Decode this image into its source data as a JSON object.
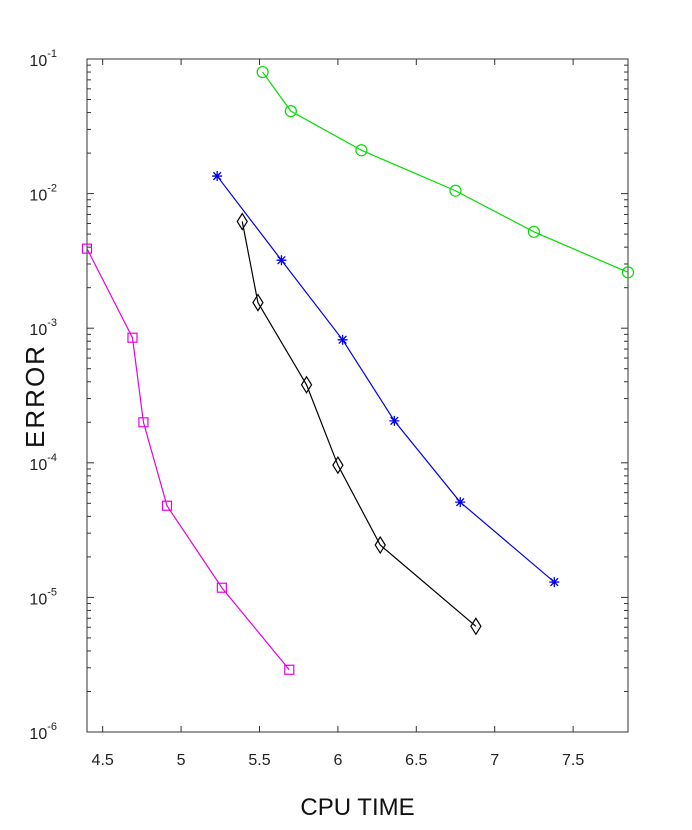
{
  "chart_data": {
    "type": "line",
    "xlabel": "CPU TIME",
    "ylabel": "ERROR",
    "xlim": [
      4.4,
      7.85
    ],
    "ylim": [
      1e-06,
      0.1
    ],
    "yscale": "log",
    "grid": false,
    "x_ticks": [
      "4.5",
      "5",
      "5.5",
      "6",
      "6.5",
      "7",
      "7.5"
    ],
    "y_ticks": [
      {
        "base": "10",
        "exp": "-6"
      },
      {
        "base": "10",
        "exp": "-5"
      },
      {
        "base": "10",
        "exp": "-4"
      },
      {
        "base": "10",
        "exp": "-3"
      },
      {
        "base": "10",
        "exp": "-2"
      },
      {
        "base": "10",
        "exp": "-1"
      }
    ],
    "series": [
      {
        "color": "#00dd00",
        "marker": "circle",
        "x": [
          5.52,
          5.7,
          6.15,
          6.75,
          7.25,
          7.85
        ],
        "y": [
          0.08,
          0.041,
          0.021,
          0.0105,
          0.0052,
          0.0026
        ]
      },
      {
        "color": "#0000ee",
        "marker": "star",
        "x": [
          5.23,
          5.64,
          6.03,
          6.36,
          6.78,
          7.38
        ],
        "y": [
          0.0135,
          0.0032,
          0.00082,
          0.000205,
          5.1e-05,
          1.3e-05
        ]
      },
      {
        "color": "#000000",
        "marker": "diamond",
        "x": [
          5.39,
          5.49,
          5.8,
          6.0,
          6.27,
          6.88
        ],
        "y": [
          0.0062,
          0.00155,
          0.00038,
          9.6e-05,
          2.45e-05,
          6.1e-06
        ]
      },
      {
        "color": "#e600e6",
        "marker": "square",
        "x": [
          4.4,
          4.69,
          4.76,
          4.91,
          5.26,
          5.69
        ],
        "y": [
          0.0039,
          0.00085,
          0.0002,
          4.8e-05,
          1.18e-05,
          2.9e-06
        ]
      }
    ]
  }
}
